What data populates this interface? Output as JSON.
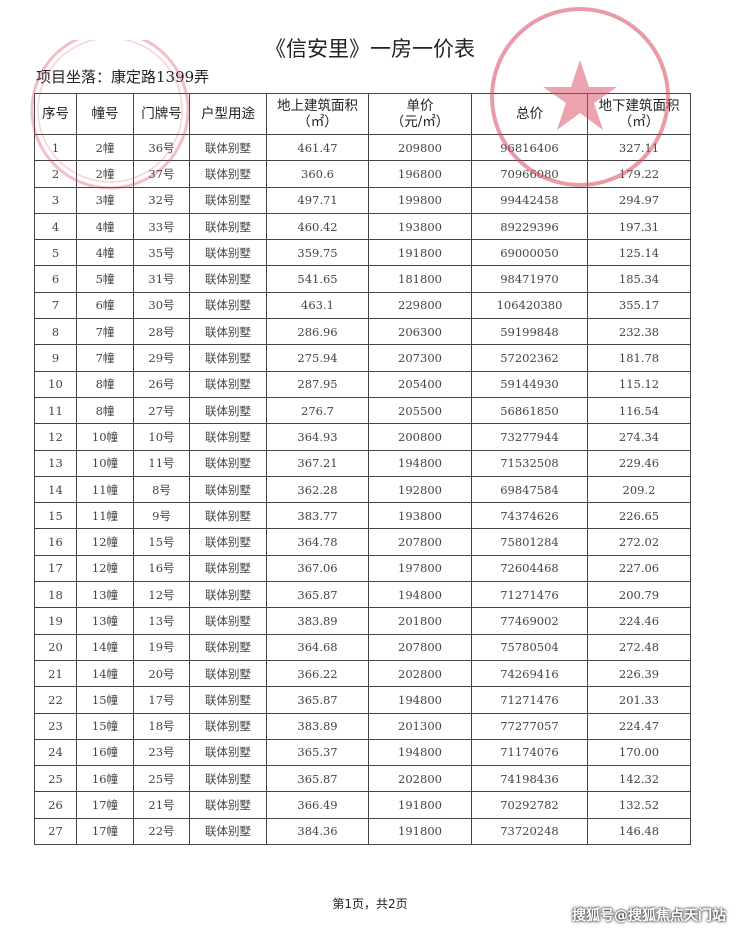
{
  "document": {
    "title": "《信安里》一房一价表",
    "location": "项目坐落：康定路1399弄",
    "stamp_color": "#d9485f"
  },
  "table": {
    "headers": [
      "序号",
      "幢号",
      "门牌号",
      "户型用途",
      "地上建筑面积\n（㎡）",
      "单价\n（元/㎡）",
      "总价",
      "地下建筑面积\n（㎡）"
    ],
    "rows": [
      [
        "1",
        "2幢",
        "36号",
        "联体别墅",
        "461.47",
        "209800",
        "96816406",
        "327.11"
      ],
      [
        "2",
        "2幢",
        "37号",
        "联体别墅",
        "360.6",
        "196800",
        "70966080",
        "179.22"
      ],
      [
        "3",
        "3幢",
        "32号",
        "联体别墅",
        "497.71",
        "199800",
        "99442458",
        "294.97"
      ],
      [
        "4",
        "4幢",
        "33号",
        "联体别墅",
        "460.42",
        "193800",
        "89229396",
        "197.31"
      ],
      [
        "5",
        "4幢",
        "35号",
        "联体别墅",
        "359.75",
        "191800",
        "69000050",
        "125.14"
      ],
      [
        "6",
        "5幢",
        "31号",
        "联体别墅",
        "541.65",
        "181800",
        "98471970",
        "185.34"
      ],
      [
        "7",
        "6幢",
        "30号",
        "联体别墅",
        "463.1",
        "229800",
        "106420380",
        "355.17"
      ],
      [
        "8",
        "7幢",
        "28号",
        "联体别墅",
        "286.96",
        "206300",
        "59199848",
        "232.38"
      ],
      [
        "9",
        "7幢",
        "29号",
        "联体别墅",
        "275.94",
        "207300",
        "57202362",
        "181.78"
      ],
      [
        "10",
        "8幢",
        "26号",
        "联体别墅",
        "287.95",
        "205400",
        "59144930",
        "115.12"
      ],
      [
        "11",
        "8幢",
        "27号",
        "联体别墅",
        "276.7",
        "205500",
        "56861850",
        "116.54"
      ],
      [
        "12",
        "10幢",
        "10号",
        "联体别墅",
        "364.93",
        "200800",
        "73277944",
        "274.34"
      ],
      [
        "13",
        "10幢",
        "11号",
        "联体别墅",
        "367.21",
        "194800",
        "71532508",
        "229.46"
      ],
      [
        "14",
        "11幢",
        "8号",
        "联体别墅",
        "362.28",
        "192800",
        "69847584",
        "209.2"
      ],
      [
        "15",
        "11幢",
        "9号",
        "联体别墅",
        "383.77",
        "193800",
        "74374626",
        "226.65"
      ],
      [
        "16",
        "12幢",
        "15号",
        "联体别墅",
        "364.78",
        "207800",
        "75801284",
        "272.02"
      ],
      [
        "17",
        "12幢",
        "16号",
        "联体别墅",
        "367.06",
        "197800",
        "72604468",
        "227.06"
      ],
      [
        "18",
        "13幢",
        "12号",
        "联体别墅",
        "365.87",
        "194800",
        "71271476",
        "200.79"
      ],
      [
        "19",
        "13幢",
        "13号",
        "联体别墅",
        "383.89",
        "201800",
        "77469002",
        "224.46"
      ],
      [
        "20",
        "14幢",
        "19号",
        "联体别墅",
        "364.68",
        "207800",
        "75780504",
        "272.48"
      ],
      [
        "21",
        "14幢",
        "20号",
        "联体别墅",
        "366.22",
        "202800",
        "74269416",
        "226.39"
      ],
      [
        "22",
        "15幢",
        "17号",
        "联体别墅",
        "365.87",
        "194800",
        "71271476",
        "201.33"
      ],
      [
        "23",
        "15幢",
        "18号",
        "联体别墅",
        "383.89",
        "201300",
        "77277057",
        "224.47"
      ],
      [
        "24",
        "16幢",
        "23号",
        "联体别墅",
        "365.37",
        "194800",
        "71174076",
        "170.00"
      ],
      [
        "25",
        "16幢",
        "25号",
        "联体别墅",
        "365.87",
        "202800",
        "74198436",
        "142.32"
      ],
      [
        "26",
        "17幢",
        "21号",
        "联体别墅",
        "366.49",
        "191800",
        "70292782",
        "132.52"
      ],
      [
        "27",
        "17幢",
        "22号",
        "联体别墅",
        "384.36",
        "191800",
        "73720248",
        "146.48"
      ]
    ]
  },
  "footer": {
    "page": "第1页，共2页",
    "watermark": "搜狐号@搜狐焦点天门站"
  }
}
